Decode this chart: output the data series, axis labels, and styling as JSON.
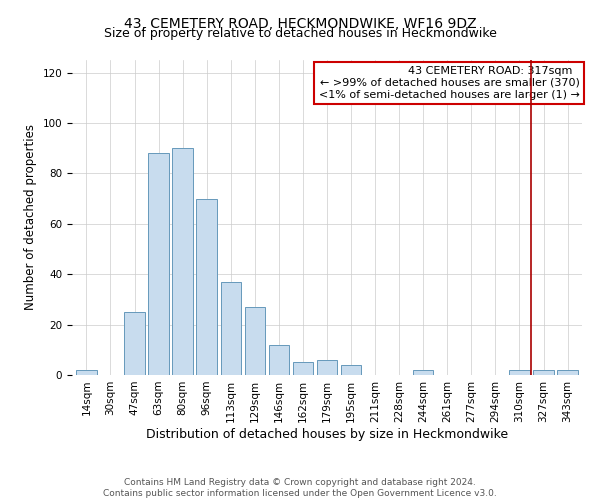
{
  "title": "43, CEMETERY ROAD, HECKMONDWIKE, WF16 9DZ",
  "subtitle": "Size of property relative to detached houses in Heckmondwike",
  "xlabel": "Distribution of detached houses by size in Heckmondwike",
  "ylabel": "Number of detached properties",
  "bar_labels": [
    "14sqm",
    "30sqm",
    "47sqm",
    "63sqm",
    "80sqm",
    "96sqm",
    "113sqm",
    "129sqm",
    "146sqm",
    "162sqm",
    "179sqm",
    "195sqm",
    "211sqm",
    "228sqm",
    "244sqm",
    "261sqm",
    "277sqm",
    "294sqm",
    "310sqm",
    "327sqm",
    "343sqm"
  ],
  "bar_heights": [
    2,
    0,
    25,
    88,
    90,
    70,
    37,
    27,
    12,
    5,
    6,
    4,
    0,
    0,
    2,
    0,
    0,
    0,
    2,
    2,
    2
  ],
  "bar_color": "#c8dcee",
  "bar_edge_color": "#6699bb",
  "vline_position": 18.5,
  "vline_color": "#aa0000",
  "ylim": [
    0,
    125
  ],
  "yticks": [
    0,
    20,
    40,
    60,
    80,
    100,
    120
  ],
  "legend_title": "43 CEMETERY ROAD: 317sqm",
  "legend_line1": "← >99% of detached houses are smaller (370)",
  "legend_line2": "<1% of semi-detached houses are larger (1) →",
  "footer_line1": "Contains HM Land Registry data © Crown copyright and database right 2024.",
  "footer_line2": "Contains public sector information licensed under the Open Government Licence v3.0.",
  "title_fontsize": 10,
  "subtitle_fontsize": 9,
  "xlabel_fontsize": 9,
  "ylabel_fontsize": 8.5,
  "tick_fontsize": 7.5,
  "legend_fontsize": 8,
  "footer_fontsize": 6.5
}
